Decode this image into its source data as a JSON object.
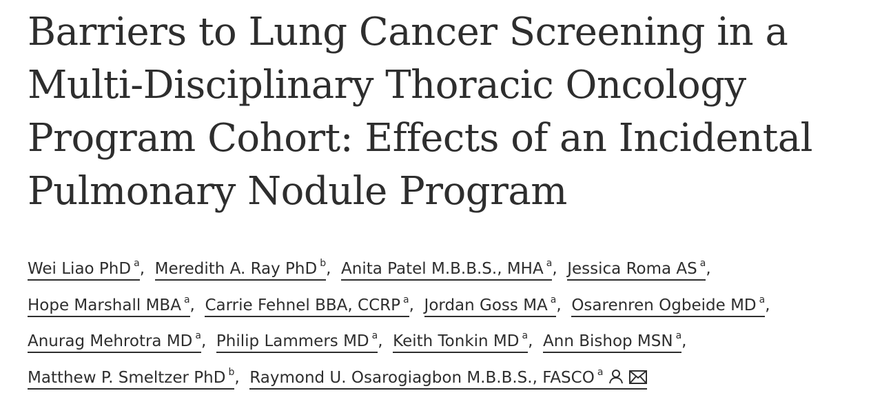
{
  "title_lines": [
    "Barriers to Lung Cancer Screening in a",
    "Multi-Disciplinary Thoracic Oncology",
    "Program Cohort: Effects of an Incidental",
    "Pulmonary Nodule Program"
  ],
  "authors": [
    {
      "name": "Wei Liao PhD",
      "affiliation": "a"
    },
    {
      "name": "Meredith A. Ray PhD",
      "affiliation": "b"
    },
    {
      "name": "Anita Patel M.B.B.S., MHA",
      "affiliation": "a"
    },
    {
      "name": "Jessica Roma AS",
      "affiliation": "a"
    },
    {
      "name": "Hope Marshall MBA",
      "affiliation": "a"
    },
    {
      "name": "Carrie Fehnel BBA, CCRP",
      "affiliation": "a"
    },
    {
      "name": "Jordan Goss MA",
      "affiliation": "a"
    },
    {
      "name": "Osarenren Ogbeide MD",
      "affiliation": "a"
    },
    {
      "name": "Anurag Mehrotra MD",
      "affiliation": "a"
    },
    {
      "name": "Philip Lammers MD",
      "affiliation": "a"
    },
    {
      "name": "Keith Tonkin MD",
      "affiliation": "a"
    },
    {
      "name": "Ann Bishop MSN",
      "affiliation": "a"
    },
    {
      "name": "Matthew P. Smeltzer PhD",
      "affiliation": "b"
    },
    {
      "name": "Raymond U. Osarogiagbon M.B.B.S., FASCO",
      "affiliation": "a"
    }
  ],
  "separator": ", ",
  "icons": {
    "corresponding_author": "person-icon",
    "email": "envelope-icon"
  },
  "colors": {
    "text": "#2e2e2e",
    "background": "#ffffff"
  }
}
